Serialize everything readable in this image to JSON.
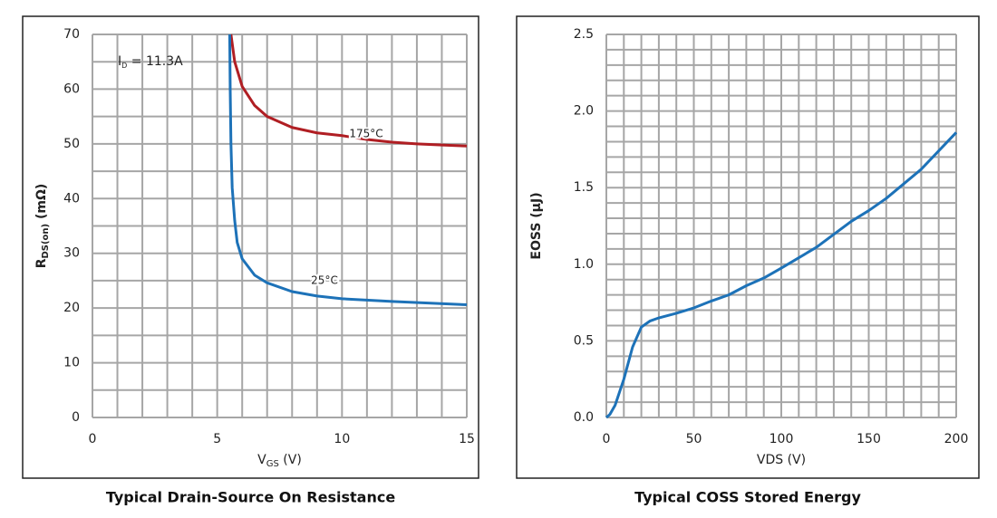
{
  "chart_data": [
    {
      "type": "line",
      "title": "Typical Drain-Source On Resistance",
      "x_label": {
        "main": "V",
        "sub": "GS",
        "rest": " (V)"
      },
      "y_label": {
        "main": "R",
        "sub": "DS(on)",
        "rest": " (mΩ)"
      },
      "annotation": {
        "main": "I",
        "sub": "D",
        "rest": " = 11.3A"
      },
      "xlim": [
        0,
        15
      ],
      "ylim": [
        0,
        70
      ],
      "xticks": [
        0,
        5,
        10,
        15
      ],
      "yticks": [
        0,
        10,
        20,
        30,
        40,
        50,
        60,
        70
      ],
      "grid": true,
      "series": [
        {
          "name": "175°C",
          "color": "#b01e23",
          "x": [
            5.55,
            5.7,
            6,
            6.5,
            7,
            8,
            9,
            10,
            11,
            12,
            13,
            14,
            15
          ],
          "values": [
            70,
            65,
            60.5,
            57,
            55,
            53,
            52,
            51.5,
            50.8,
            50.3,
            50,
            49.8,
            49.6
          ]
        },
        {
          "name": "25°C",
          "color": "#1d72b8",
          "x": [
            5.5,
            5.52,
            5.55,
            5.6,
            5.7,
            5.8,
            6,
            6.5,
            7,
            8,
            9,
            10,
            12,
            15
          ],
          "values": [
            70,
            60,
            50,
            42,
            36,
            32,
            29,
            26,
            24.6,
            23,
            22.2,
            21.7,
            21.2,
            20.6
          ]
        }
      ]
    },
    {
      "type": "line",
      "title": "Typical COSS Stored Energy",
      "x_label": {
        "main": "VDS (V)"
      },
      "y_label": {
        "main": "EOSS (µJ)"
      },
      "xlim": [
        0,
        200
      ],
      "ylim": [
        0,
        2.5
      ],
      "xticks": [
        0,
        50,
        100,
        150,
        200
      ],
      "yticks": [
        {
          "value": 0,
          "label": "0.0"
        },
        0.5,
        {
          "value": 1,
          "label": "1.0"
        },
        1.5,
        {
          "value": 2,
          "label": "2.0"
        },
        2.5
      ],
      "grid": true,
      "series": [
        {
          "color": "#1d72b8",
          "x": [
            0,
            2,
            5,
            10,
            15,
            20,
            25,
            30,
            40,
            50,
            60,
            70,
            80,
            90,
            100,
            120,
            140,
            150,
            160,
            180,
            200
          ],
          "values": [
            0,
            0.02,
            0.08,
            0.25,
            0.46,
            0.59,
            0.63,
            0.65,
            0.68,
            0.715,
            0.76,
            0.8,
            0.86,
            0.91,
            0.975,
            1.11,
            1.28,
            1.35,
            1.43,
            1.62,
            1.86
          ]
        }
      ]
    }
  ]
}
